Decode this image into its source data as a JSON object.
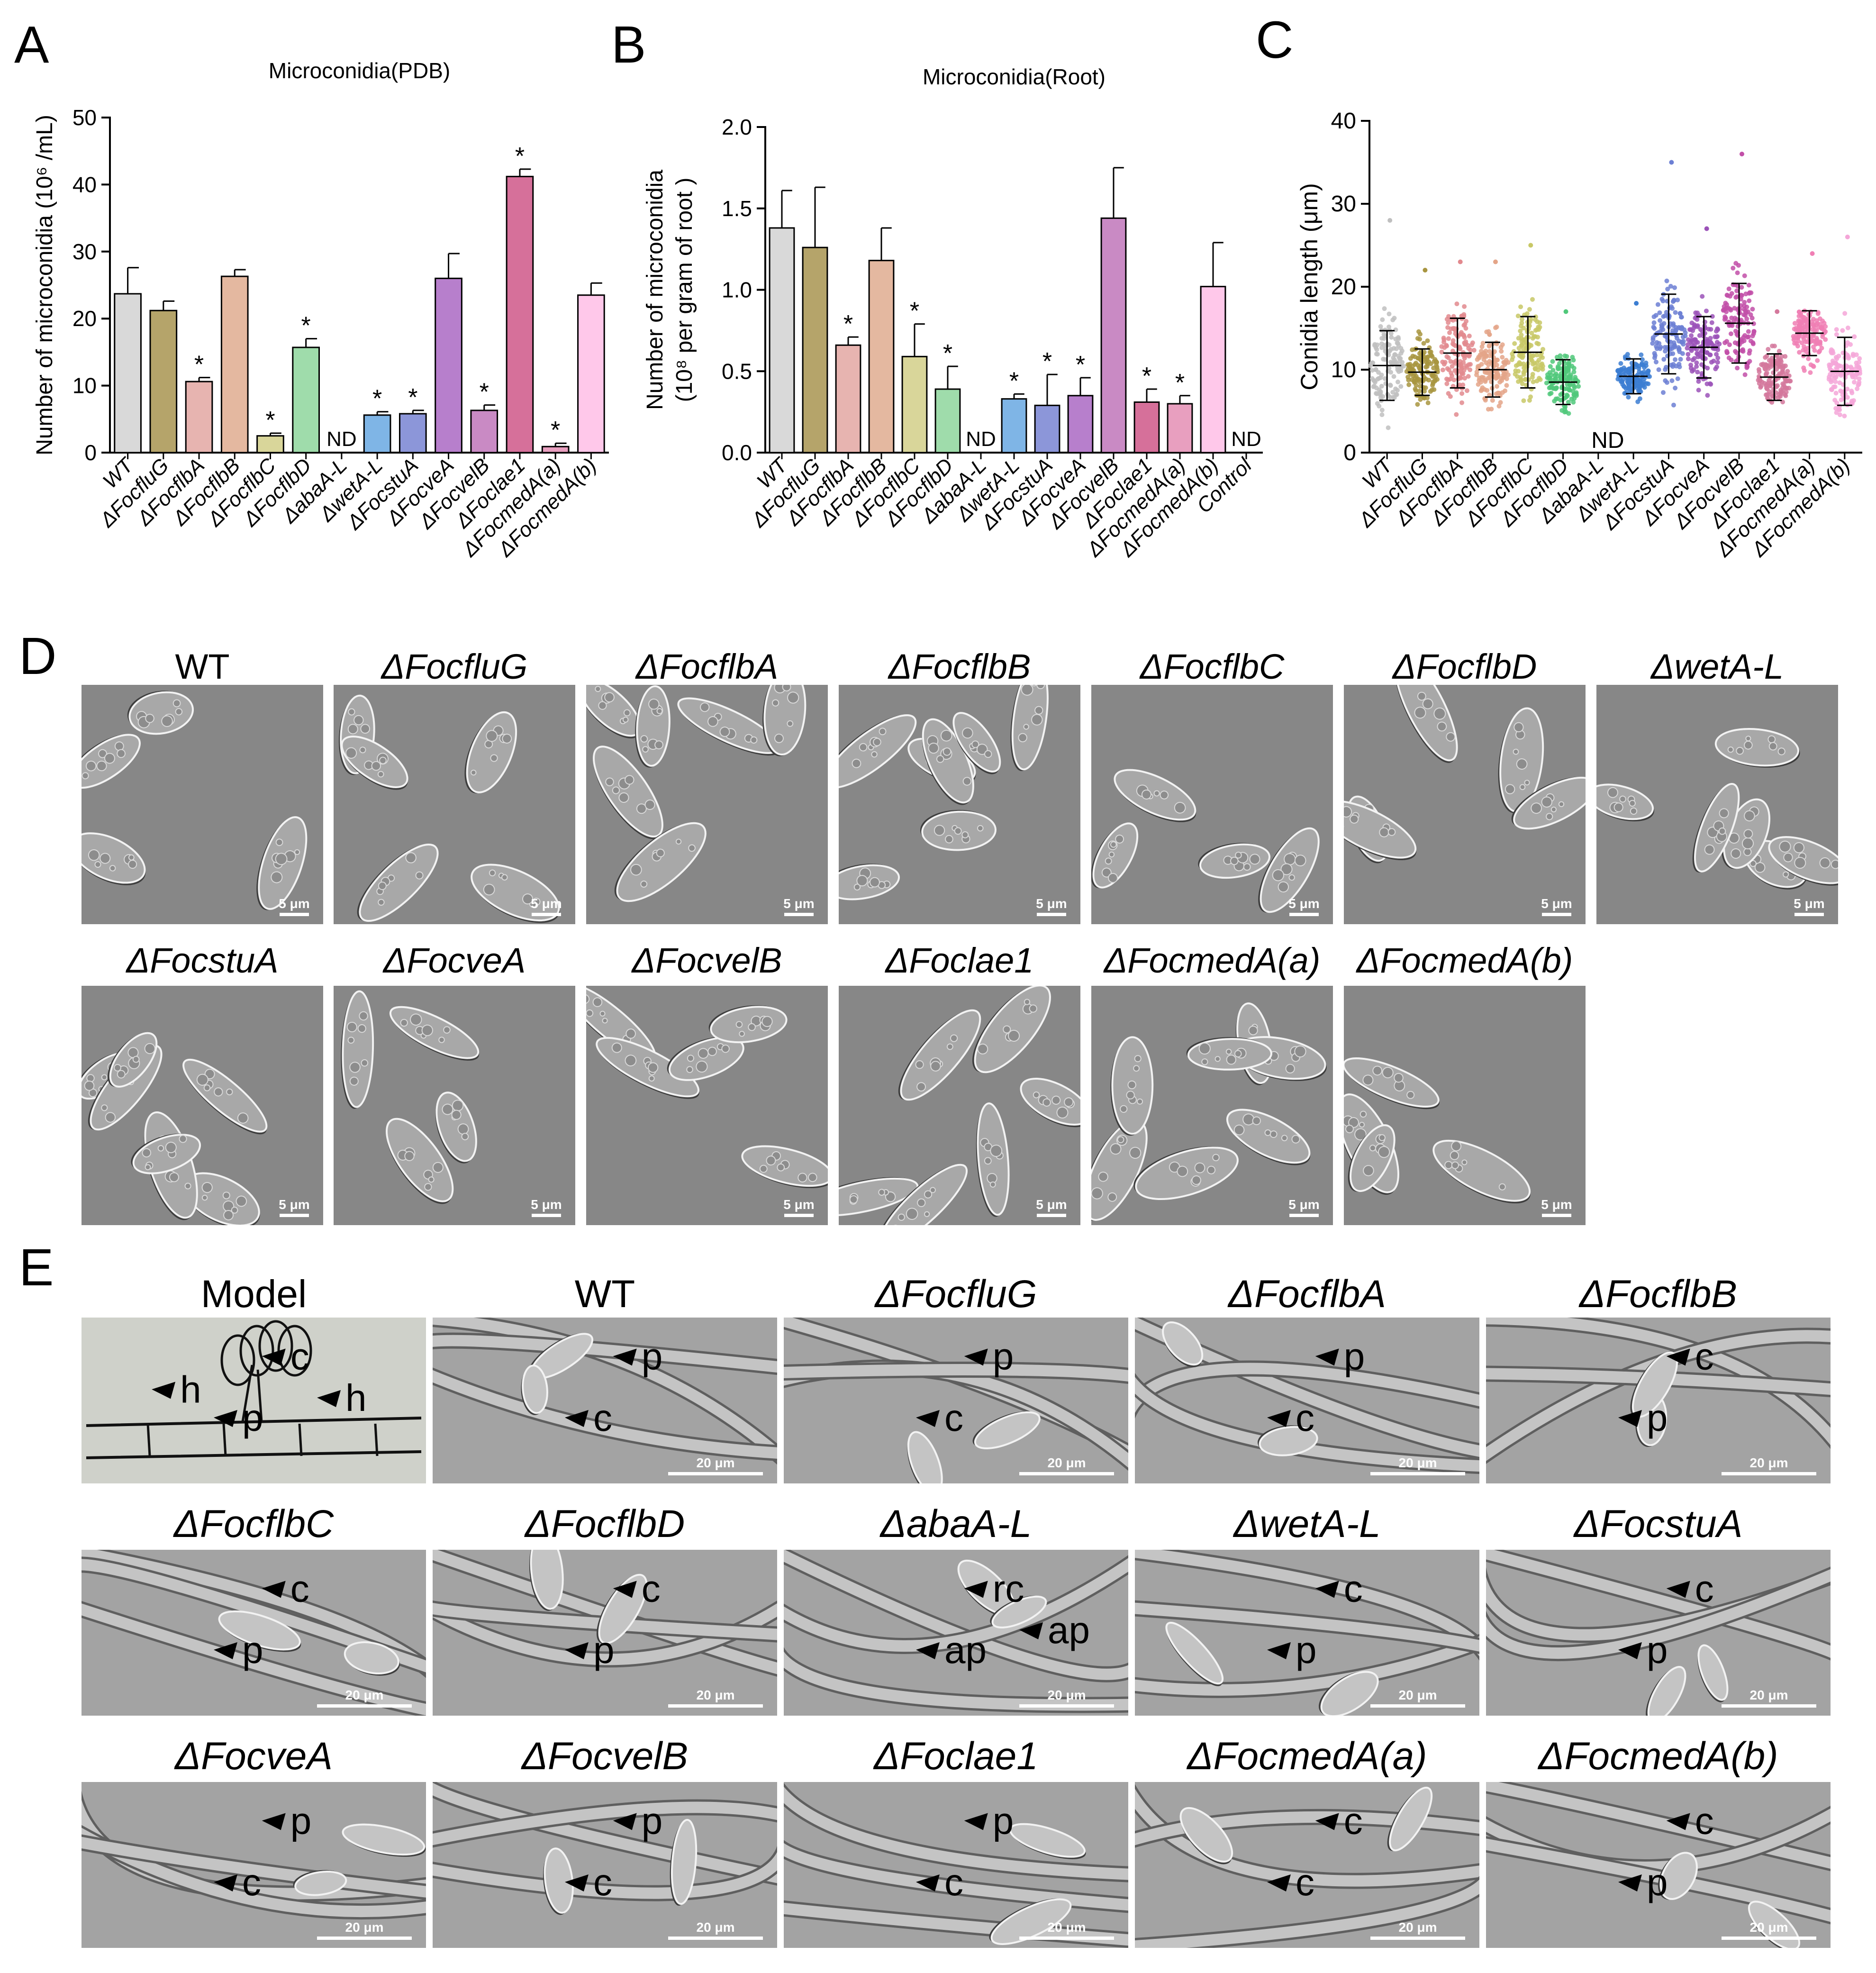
{
  "panels": {
    "A": "A",
    "B": "B",
    "C": "C",
    "D": "D",
    "E": "E"
  },
  "not_detected": "ND",
  "significance_mark": "*",
  "chart_data": [
    {
      "id": "A",
      "type": "bar",
      "title": "Microconidia(PDB)",
      "ylabel": "Number of microconidia (10⁶ /mL)",
      "ylim": [
        0,
        50
      ],
      "yticks": [
        0,
        10,
        20,
        30,
        40,
        50
      ],
      "categories": [
        "WT",
        "ΔFocfluG",
        "ΔFocflbA",
        "ΔFocflbB",
        "ΔFocflbC",
        "ΔFocflbD",
        "ΔabaA-L",
        "ΔwetA-L",
        "ΔFocstuA",
        "ΔFocveA",
        "ΔFocvelB",
        "ΔFoclae1",
        "ΔFocmedA(a)",
        "ΔFocmedA(b)"
      ],
      "values": [
        23.7,
        21.2,
        10.6,
        26.3,
        2.5,
        15.7,
        null,
        5.6,
        5.8,
        26.0,
        6.3,
        41.2,
        0.9,
        23.5
      ],
      "errors": [
        3.9,
        1.4,
        0.6,
        1.0,
        0.4,
        1.3,
        null,
        0.5,
        0.5,
        3.7,
        0.8,
        1.1,
        0.5,
        1.8
      ],
      "significant": [
        false,
        false,
        true,
        false,
        true,
        true,
        false,
        true,
        true,
        false,
        true,
        true,
        true,
        false
      ],
      "nd": [
        false,
        false,
        false,
        false,
        false,
        false,
        true,
        false,
        false,
        false,
        false,
        false,
        false,
        false
      ],
      "colors": [
        "#d9d9d9",
        "#b5a46a",
        "#e7b4b0",
        "#e4b8a0",
        "#d9d69a",
        "#9fdcab",
        "#ffffff",
        "#7fb5e6",
        "#8c96d9",
        "#b77fcc",
        "#c98ac4",
        "#d6709a",
        "#e89fbf",
        "#ffc8ea"
      ]
    },
    {
      "id": "B",
      "type": "bar",
      "title": "Microconidia(Root)",
      "ylabel_line1": "Number of microconidia",
      "ylabel_line2": "(10⁸ per gram of root )",
      "ylim": [
        0,
        2.0
      ],
      "yticks": [
        "0.0",
        "0.5",
        "1.0",
        "1.5",
        "2.0"
      ],
      "categories": [
        "WT",
        "ΔFocfluG",
        "ΔFocflbA",
        "ΔFocflbB",
        "ΔFocflbC",
        "ΔFocflbD",
        "ΔabaA-L",
        "ΔwetA-L",
        "ΔFocstuA",
        "ΔFocveA",
        "ΔFocvelB",
        "ΔFoclae1",
        "ΔFocmedA(a)",
        "ΔFocmedA(b)",
        "Control"
      ],
      "values": [
        1.38,
        1.26,
        0.66,
        1.18,
        0.59,
        0.39,
        null,
        0.33,
        0.29,
        0.35,
        1.44,
        0.31,
        0.3,
        1.02,
        null
      ],
      "errors": [
        0.23,
        0.37,
        0.05,
        0.2,
        0.2,
        0.14,
        null,
        0.03,
        0.19,
        0.11,
        0.31,
        0.08,
        0.05,
        0.27,
        null
      ],
      "significant": [
        false,
        false,
        true,
        false,
        true,
        true,
        false,
        true,
        true,
        true,
        false,
        true,
        true,
        false,
        false
      ],
      "nd": [
        false,
        false,
        false,
        false,
        false,
        false,
        true,
        false,
        false,
        false,
        false,
        false,
        false,
        false,
        true
      ],
      "colors": [
        "#d9d9d9",
        "#b5a46a",
        "#e7b4b0",
        "#e4b8a0",
        "#d9d69a",
        "#9fdcab",
        "#ffffff",
        "#7fb5e6",
        "#8c96d9",
        "#b77fcc",
        "#c98ac4",
        "#d6709a",
        "#e89fbf",
        "#ffc8ea",
        "#ffffff"
      ]
    },
    {
      "id": "C",
      "type": "scatter",
      "ylabel": "Conidia length (μm)",
      "ylim": [
        0,
        40
      ],
      "yticks": [
        0,
        10,
        20,
        30,
        40
      ],
      "categories": [
        "WT",
        "ΔFocfluG",
        "ΔFocflbA",
        "ΔFocflbB",
        "ΔFocflbC",
        "ΔFocflbD",
        "ΔabaA-L",
        "ΔwetA-L",
        "ΔFocstuA",
        "ΔFocveA",
        "ΔFocvelB",
        "ΔFoclae1",
        "ΔFocmedA(a)",
        "ΔFocmedA(b)"
      ],
      "means": [
        10.5,
        9.7,
        12.0,
        10.0,
        12.1,
        8.5,
        null,
        9.2,
        14.3,
        12.7,
        15.6,
        9.1,
        14.4,
        9.8
      ],
      "sd": [
        4.2,
        2.8,
        4.2,
        3.3,
        4.3,
        2.7,
        null,
        2.1,
        4.8,
        3.7,
        4.8,
        2.8,
        2.7,
        4.1
      ],
      "max": [
        28,
        22,
        23,
        23,
        25,
        17,
        null,
        18,
        35,
        27,
        36,
        17,
        24,
        26
      ],
      "min": [
        3,
        4,
        4,
        4,
        4,
        3,
        null,
        4,
        5,
        5,
        6,
        4,
        7,
        4
      ],
      "nd": [
        false,
        false,
        false,
        false,
        false,
        false,
        true,
        false,
        false,
        false,
        false,
        false,
        false,
        false
      ],
      "colors": [
        "#bfbfbf",
        "#a89540",
        "#e2898e",
        "#e4a588",
        "#c8c866",
        "#50c87a",
        "#ffffff",
        "#3c7ed2",
        "#6c7fd4",
        "#9b52b8",
        "#c24fa8",
        "#d4789c",
        "#f07fb4",
        "#f4a6d8"
      ]
    }
  ],
  "panel_D": {
    "scale_bar": "5 μm",
    "tiles": [
      "WT",
      "ΔFocfluG",
      "ΔFocflbA",
      "ΔFocflbB",
      "ΔFocflbC",
      "ΔFocflbD",
      "ΔwetA-L",
      "ΔFocstuA",
      "ΔFocveA",
      "ΔFocvelB",
      "ΔFoclae1",
      "ΔFocmedA(a)",
      "ΔFocmedA(b)"
    ]
  },
  "panel_E": {
    "scale_bar": "20 μm",
    "tiles": [
      {
        "title": "Model",
        "labels": [
          "c",
          "p",
          "h",
          "h"
        ]
      },
      {
        "title": "WT",
        "labels": [
          "p",
          "c"
        ]
      },
      {
        "title": "ΔFocfluG",
        "labels": [
          "p",
          "c"
        ]
      },
      {
        "title": "ΔFocflbA",
        "labels": [
          "p",
          "c"
        ]
      },
      {
        "title": "ΔFocflbB",
        "labels": [
          "c",
          "p"
        ]
      },
      {
        "title": "ΔFocflbC",
        "labels": [
          "c",
          "p"
        ]
      },
      {
        "title": "ΔFocflbD",
        "labels": [
          "c",
          "p"
        ]
      },
      {
        "title": "ΔabaA-L",
        "labels": [
          "rc",
          "ap",
          "ap"
        ]
      },
      {
        "title": "ΔwetA-L",
        "labels": [
          "c",
          "p"
        ]
      },
      {
        "title": "ΔFocstuA",
        "labels": [
          "c",
          "p"
        ]
      },
      {
        "title": "ΔFocveA",
        "labels": [
          "p",
          "c"
        ]
      },
      {
        "title": "ΔFocvelB",
        "labels": [
          "p",
          "c"
        ]
      },
      {
        "title": "ΔFoclae1",
        "labels": [
          "p",
          "c"
        ]
      },
      {
        "title": "ΔFocmedA(a)",
        "labels": [
          "c",
          "c"
        ]
      },
      {
        "title": "ΔFocmedA(b)",
        "labels": [
          "c",
          "p"
        ]
      }
    ]
  }
}
